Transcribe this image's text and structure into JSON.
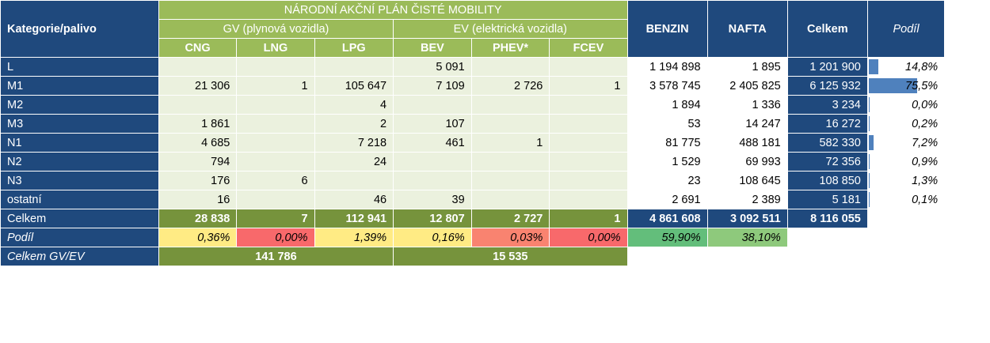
{
  "title": "NÁRODNÍ AKČNÍ PLÁN ČISTÉ MOBILITY",
  "header": {
    "category": "Kategorie/palivo",
    "gv_group": "GV (plynová vozidla)",
    "ev_group": "EV (elektrická vozidla)",
    "benzin": "BENZIN",
    "nafta": "NAFTA",
    "total": "Celkem",
    "share": "Podíl",
    "subcols": [
      "CNG",
      "LNG",
      "LPG",
      "BEV",
      "PHEV*",
      "FCEV"
    ]
  },
  "rows": [
    {
      "label": "L",
      "cng": "",
      "lng": "",
      "lpg": "",
      "bev": "5 091",
      "phev": "",
      "fcev": "",
      "benzin": "1 194 898",
      "nafta": "1 895",
      "total": "1 201 900",
      "share": "14,8%",
      "share_value": 14.8
    },
    {
      "label": "M1",
      "cng": "21 306",
      "lng": "1",
      "lpg": "105 647",
      "bev": "7 109",
      "phev": "2 726",
      "fcev": "1",
      "benzin": "3 578 745",
      "nafta": "2 405 825",
      "total": "6 125 932",
      "share": "75,5%",
      "share_value": 75.5
    },
    {
      "label": "M2",
      "cng": "",
      "lng": "",
      "lpg": "4",
      "bev": "",
      "phev": "",
      "fcev": "",
      "benzin": "1 894",
      "nafta": "1 336",
      "total": "3 234",
      "share": "0,0%",
      "share_value": 0.0
    },
    {
      "label": "M3",
      "cng": "1 861",
      "lng": "",
      "lpg": "2",
      "bev": "107",
      "phev": "",
      "fcev": "",
      "benzin": "53",
      "nafta": "14 247",
      "total": "16 272",
      "share": "0,2%",
      "share_value": 0.2
    },
    {
      "label": "N1",
      "cng": "4 685",
      "lng": "",
      "lpg": "7 218",
      "bev": "461",
      "phev": "1",
      "fcev": "",
      "benzin": "81 775",
      "nafta": "488 181",
      "total": "582 330",
      "share": "7,2%",
      "share_value": 7.2
    },
    {
      "label": "N2",
      "cng": "794",
      "lng": "",
      "lpg": "24",
      "bev": "",
      "phev": "",
      "fcev": "",
      "benzin": "1 529",
      "nafta": "69 993",
      "total": "72 356",
      "share": "0,9%",
      "share_value": 0.9
    },
    {
      "label": "N3",
      "cng": "176",
      "lng": "6",
      "lpg": "",
      "bev": "",
      "phev": "",
      "fcev": "",
      "benzin": "23",
      "nafta": "108 645",
      "total": "108 850",
      "share": "1,3%",
      "share_value": 1.3
    },
    {
      "label": "ostatní",
      "cng": "16",
      "lng": "",
      "lpg": "46",
      "bev": "39",
      "phev": "",
      "fcev": "",
      "benzin": "2 691",
      "nafta": "2 389",
      "total": "5 181",
      "share": "0,1%",
      "share_value": 0.1
    }
  ],
  "totals": {
    "label": "Celkem",
    "values": [
      "28 838",
      "7",
      "112 941",
      "12 807",
      "2 727",
      "1"
    ],
    "benzin": "4 861 608",
    "nafta": "3 092 511",
    "total": "8 116 055"
  },
  "shares": {
    "label": "Podíl",
    "values": [
      "0,36%",
      "0,00%",
      "1,39%",
      "0,16%",
      "0,03%",
      "0,00%"
    ],
    "colors": [
      "#ffeb84",
      "#f8696b",
      "#ffeb84",
      "#ffeb84",
      "#f98370",
      "#f8696b"
    ],
    "benzin": "59,90%",
    "nafta": "38,10%",
    "benzin_color": "#63be7b",
    "nafta_color": "#8ec97c"
  },
  "group_totals": {
    "label": "Celkem GV/EV",
    "gv": "141 786",
    "ev": "15 535"
  }
}
